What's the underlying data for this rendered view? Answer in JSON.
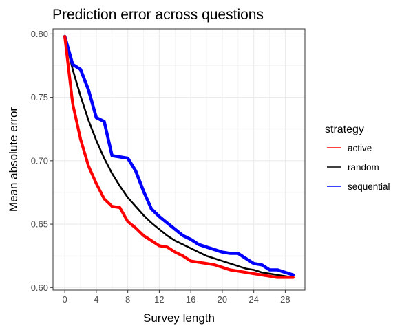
{
  "chart_data": {
    "type": "line",
    "title": "Prediction error across questions",
    "xlabel": "Survey length",
    "ylabel": "Mean absolute error",
    "xlim": [
      -1.5,
      30.5
    ],
    "ylim": [
      0.598,
      0.804
    ],
    "x_ticks": [
      0,
      4,
      8,
      12,
      16,
      20,
      24,
      28
    ],
    "x_tick_labels": [
      "0",
      "4",
      "8",
      "12",
      "16",
      "20",
      "24",
      "28"
    ],
    "y_ticks": [
      0.6,
      0.65,
      0.7,
      0.75,
      0.8
    ],
    "y_tick_labels": [
      "0.60",
      "0.65",
      "0.70",
      "0.75",
      "0.80"
    ],
    "grid": true,
    "legend": {
      "title": "strategy",
      "placement": "right"
    },
    "x": [
      0,
      1,
      2,
      3,
      4,
      5,
      6,
      7,
      8,
      9,
      10,
      11,
      12,
      13,
      14,
      15,
      16,
      17,
      18,
      19,
      20,
      21,
      22,
      23,
      24,
      25,
      26,
      27,
      28,
      29
    ],
    "series": [
      {
        "name": "active",
        "color": "#ff0000",
        "values": [
          0.798,
          0.745,
          0.717,
          0.696,
          0.682,
          0.67,
          0.664,
          0.663,
          0.652,
          0.647,
          0.641,
          0.637,
          0.633,
          0.632,
          0.628,
          0.625,
          0.621,
          0.62,
          0.619,
          0.618,
          0.616,
          0.614,
          0.613,
          0.612,
          0.611,
          0.61,
          0.609,
          0.608,
          0.608,
          0.608
        ]
      },
      {
        "name": "random",
        "color": "#000000",
        "values": [
          0.798,
          0.772,
          0.751,
          0.732,
          0.716,
          0.702,
          0.69,
          0.68,
          0.671,
          0.664,
          0.657,
          0.651,
          0.646,
          0.641,
          0.637,
          0.634,
          0.631,
          0.628,
          0.625,
          0.623,
          0.621,
          0.619,
          0.617,
          0.615,
          0.614,
          0.612,
          0.611,
          0.61,
          0.609,
          0.608
        ]
      },
      {
        "name": "sequential",
        "color": "#0000ff",
        "values": [
          0.798,
          0.776,
          0.772,
          0.756,
          0.734,
          0.731,
          0.704,
          0.703,
          0.702,
          0.692,
          0.676,
          0.662,
          0.656,
          0.651,
          0.646,
          0.641,
          0.638,
          0.634,
          0.632,
          0.63,
          0.628,
          0.627,
          0.627,
          0.623,
          0.619,
          0.618,
          0.614,
          0.614,
          0.612,
          0.61
        ]
      }
    ]
  }
}
